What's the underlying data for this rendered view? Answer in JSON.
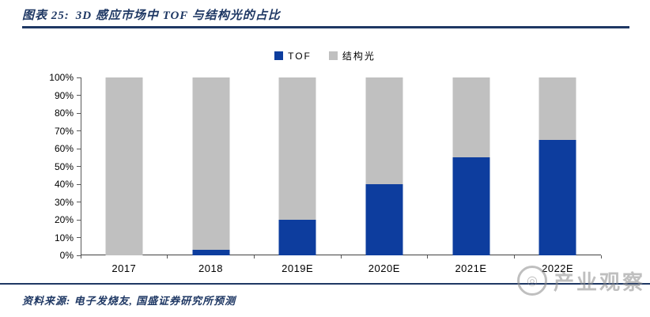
{
  "header": {
    "label": "图表 25:",
    "title": "3D 感应市场中 TOF 与结构光的占比"
  },
  "footer": {
    "source": "资料来源: 电子发烧友, 国盛证券研究所预测"
  },
  "watermark": {
    "text": "产业观察"
  },
  "colors": {
    "accent": "#1f3864",
    "tof": "#0d3d9e",
    "structured_light": "#c0c0c0",
    "axis": "#595959"
  },
  "chart_data": {
    "type": "bar",
    "stacked": true,
    "title": "3D 感应市场中 TOF 与结构光的占比",
    "categories": [
      "2017",
      "2018",
      "2019E",
      "2020E",
      "2021E",
      "2022E"
    ],
    "series": [
      {
        "name": "TOF",
        "color": "#0d3d9e",
        "values": [
          0,
          3,
          20,
          40,
          55,
          65
        ]
      },
      {
        "name": "结构光",
        "color": "#c0c0c0",
        "values": [
          100,
          97,
          80,
          60,
          45,
          35
        ]
      }
    ],
    "xlabel": "",
    "ylabel": "",
    "ylim": [
      0,
      100
    ],
    "ytick_step": 10,
    "ytick_format": "percent",
    "grid": false,
    "legend_position": "top"
  }
}
